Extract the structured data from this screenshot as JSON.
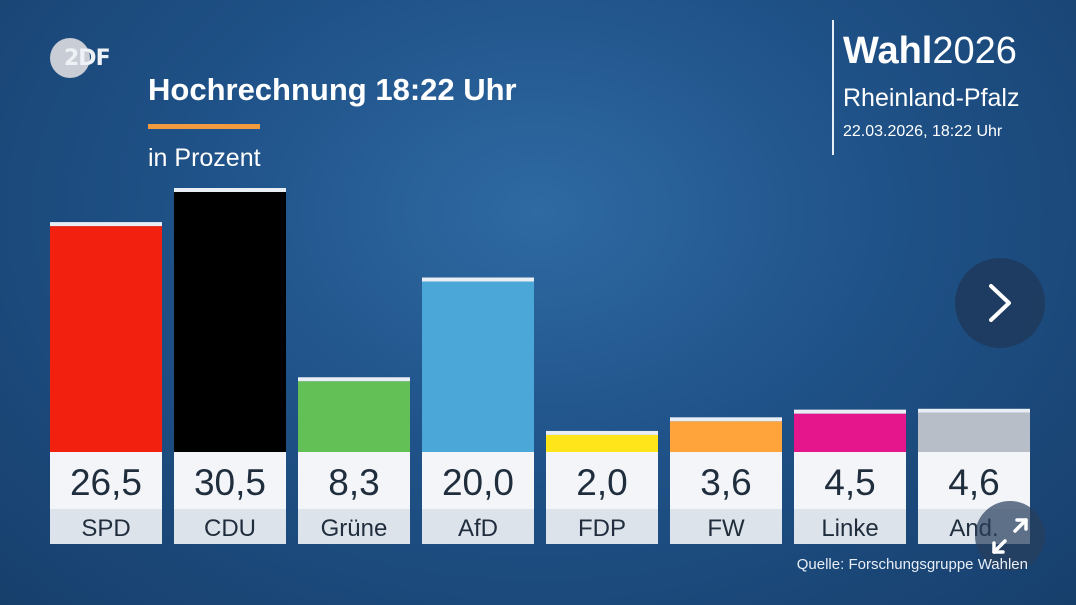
{
  "logo": {
    "text": "2DF"
  },
  "header": {
    "title": "Hochrechnung 18:22 Uhr",
    "unit": "in Prozent"
  },
  "brand": {
    "wahl": "Wahl",
    "year": "2026",
    "region": "Rheinland-Pfalz",
    "datetime": "22.03.2026, 18:22 Uhr"
  },
  "source": "Quelle: Forschungsgruppe Wahlen",
  "icons": {
    "next": "chevron-right-icon",
    "expand": "expand-icon"
  },
  "chart_data": {
    "type": "bar",
    "categories": [
      "SPD",
      "CDU",
      "Grüne",
      "AfD",
      "FDP",
      "FW",
      "Linke",
      "And."
    ],
    "value_labels": [
      "26,5",
      "30,5",
      "8,3",
      "20,0",
      "2,0",
      "3,6",
      "4,5",
      "4,6"
    ],
    "values": [
      26.5,
      30.5,
      8.3,
      20.0,
      2.0,
      3.6,
      4.5,
      4.6
    ],
    "colors": [
      "#f2210f",
      "#000000",
      "#63c056",
      "#4aa7d8",
      "#ffe51a",
      "#fea43b",
      "#e5158c",
      "#b7bec7"
    ],
    "ylabel": "in Prozent",
    "ylim": [
      0,
      30.5
    ]
  }
}
